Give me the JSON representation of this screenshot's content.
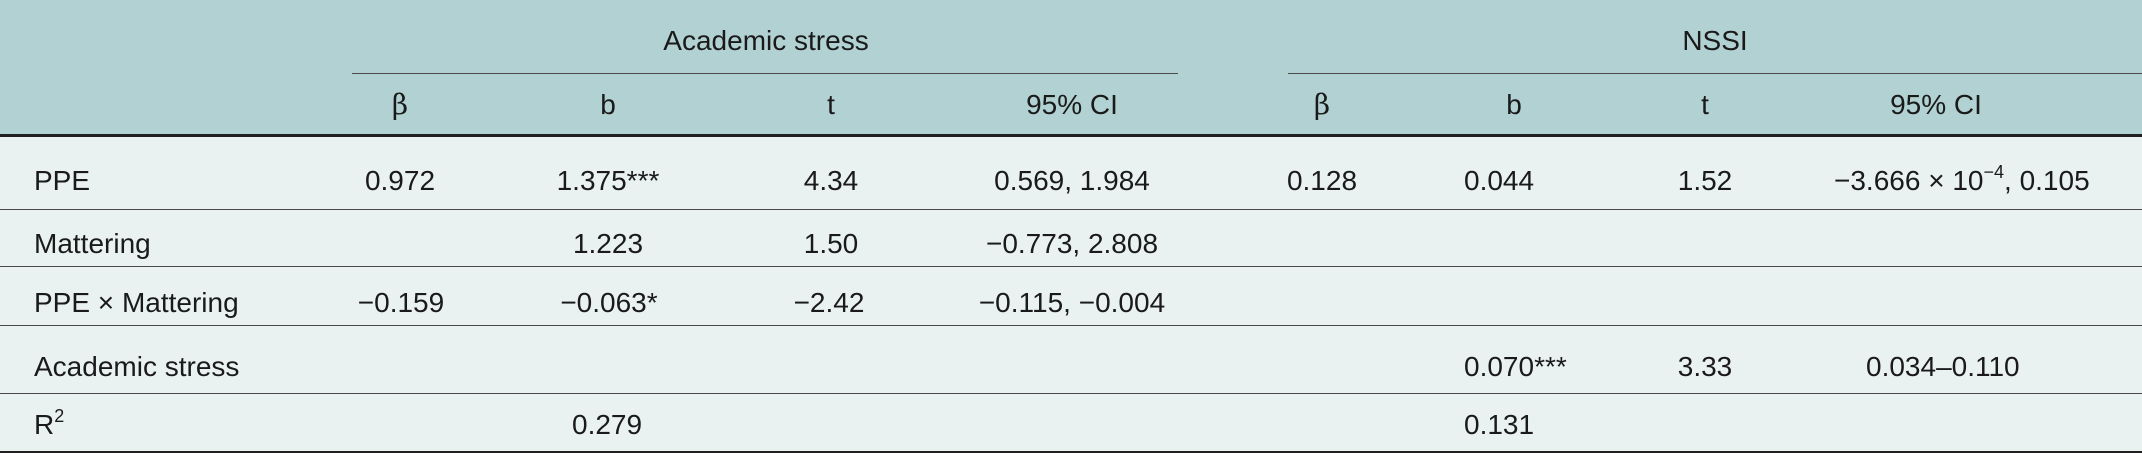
{
  "groups": {
    "academic_stress": "Academic stress",
    "nssi": "NSSI"
  },
  "columns": {
    "beta": "β",
    "b": "b",
    "t": "t",
    "ci": "95% CI"
  },
  "rows": [
    {
      "label": "PPE",
      "as_beta": "0.972",
      "as_b": "1.375***",
      "as_t": "4.34",
      "as_ci": "0.569, 1.984",
      "n_beta": "0.128",
      "n_b": "0.044",
      "n_t": "1.52",
      "n_ci_pre": "−3.666 × 10",
      "n_ci_exp": "−4",
      "n_ci_post": ", 0.105"
    },
    {
      "label": "Mattering",
      "as_beta": "",
      "as_b": "1.223",
      "as_t": "1.50",
      "as_ci": "−0.773, 2.808",
      "n_beta": "",
      "n_b": "",
      "n_t": "",
      "n_ci": ""
    },
    {
      "label": "PPE × Mattering",
      "as_beta": "−0.159",
      "as_b": "−0.063*",
      "as_t": "−2.42",
      "as_ci": "−0.115, −0.004",
      "n_beta": "",
      "n_b": "",
      "n_t": "",
      "n_ci": ""
    },
    {
      "label": "Academic stress",
      "as_beta": "",
      "as_b": "",
      "as_t": "",
      "as_ci": "",
      "n_beta": "",
      "n_b": "0.070***",
      "n_t": "3.33",
      "n_ci": "0.034–0.110"
    },
    {
      "label_base": "R",
      "label_sup": "2",
      "as_beta": "",
      "as_b": "0.279",
      "as_t": "",
      "as_ci": "",
      "n_beta": "",
      "n_b": "0.131",
      "n_t": "",
      "n_ci": ""
    }
  ],
  "colors": {
    "header_bg": "#b2d1d2",
    "body_bg": "#e9f2f1",
    "rule": "#1f1f1f"
  }
}
